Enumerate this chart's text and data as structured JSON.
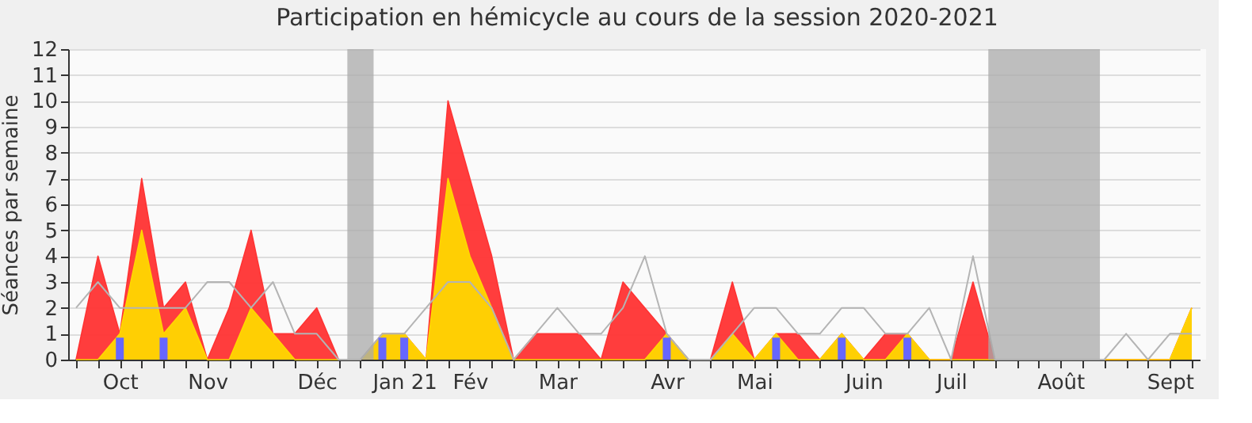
{
  "chart_data": {
    "type": "area",
    "title": "Participation en hémicycle au cours de la session 2020-2021",
    "ylabel": "Séances par semaine",
    "categories": [
      null,
      null,
      "Oct",
      null,
      null,
      null,
      "Nov",
      null,
      null,
      null,
      null,
      "Déc",
      null,
      null,
      null,
      "Jan 21",
      null,
      null,
      "Fév",
      null,
      null,
      null,
      "Mar",
      null,
      null,
      null,
      null,
      "Avr",
      null,
      null,
      null,
      "Mai",
      null,
      null,
      null,
      null,
      "Juin",
      null,
      null,
      null,
      "Juil",
      null,
      null,
      null,
      null,
      "Août",
      null,
      null,
      null,
      null,
      "Sept",
      null
    ],
    "series": [
      {
        "color": "#ff3333",
        "values": [
          0,
          4,
          1,
          7,
          2,
          3,
          0,
          2,
          5,
          1,
          1,
          2,
          0,
          0,
          1,
          1,
          0,
          10,
          7,
          4,
          0,
          1,
          1,
          1,
          0,
          3,
          2,
          1,
          0,
          0,
          3,
          0,
          1,
          1,
          0,
          1,
          0,
          1,
          1,
          0,
          0,
          3,
          0,
          0,
          0,
          0,
          0,
          0,
          0,
          0,
          0,
          2
        ]
      },
      {
        "color": "#ffd700",
        "values": [
          0,
          0,
          1,
          5,
          1,
          2,
          0,
          0,
          2,
          1,
          0,
          0,
          0,
          0,
          1,
          1,
          0,
          7,
          4,
          2,
          0,
          0,
          0,
          0,
          0,
          0,
          0,
          1,
          0,
          0,
          1,
          0,
          1,
          0,
          0,
          1,
          0,
          0,
          1,
          0,
          0,
          0,
          0,
          0,
          0,
          0,
          0,
          0,
          0,
          0,
          0,
          2
        ]
      },
      {
        "type": "line",
        "color": "#b4b4b4",
        "values": [
          2,
          3,
          2,
          2,
          2,
          2,
          3,
          3,
          2,
          3,
          1,
          1,
          0,
          0,
          1,
          1,
          2,
          3,
          3,
          2,
          0,
          1,
          2,
          1,
          1,
          2,
          4,
          1,
          0,
          0,
          1,
          2,
          2,
          1,
          1,
          2,
          2,
          1,
          1,
          2,
          0,
          4,
          0,
          0,
          0,
          0,
          0,
          0,
          1,
          0,
          1,
          1
        ]
      },
      {
        "type": "bar",
        "color": "#6666ff",
        "values": [
          null,
          null,
          0.85,
          null,
          0.85,
          null,
          null,
          null,
          null,
          null,
          null,
          null,
          null,
          null,
          0.85,
          0.85,
          null,
          null,
          null,
          null,
          null,
          null,
          null,
          null,
          null,
          null,
          null,
          0.85,
          null,
          null,
          null,
          null,
          0.85,
          null,
          null,
          0.85,
          null,
          null,
          0.85,
          null,
          null,
          null,
          null,
          null,
          null,
          null,
          null,
          null,
          null,
          null,
          null,
          null
        ]
      }
    ],
    "ylim": [
      0,
      12
    ],
    "yticks": [
      0,
      1,
      2,
      3,
      4,
      5,
      6,
      7,
      8,
      9,
      10,
      11,
      12
    ],
    "grid": "y"
  }
}
